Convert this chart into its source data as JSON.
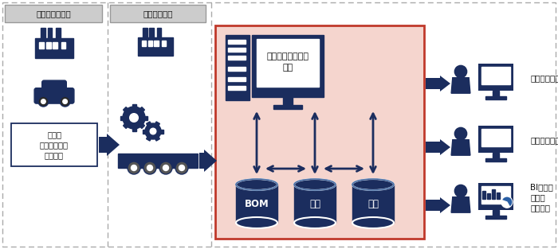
{
  "bg_color": "#ffffff",
  "dark_navy": "#1b2d5e",
  "light_pink_bg": "#f5d5ce",
  "red_border": "#c0392b",
  "gray_box_bg": "#cccccc",
  "gray_box_border": "#999999",
  "dashed_border_color": "#aaaaaa",
  "arrow_color": "#1b2d5e",
  "label_kansei": "完成車メーカー",
  "label_buhin": "部品メーカー",
  "label_sharubetsu": "車種別\n生産予定台数\n（年間）",
  "label_simulation": "シミュレーション\n計算",
  "label_bom": "BOM",
  "label_keikaku": "計画",
  "label_tanka": "単価",
  "label_uriage": "小上予算管理",
  "label_shiirenin": "仕入予算計画",
  "label_bi": "BIツール\nによる\n予実分析"
}
